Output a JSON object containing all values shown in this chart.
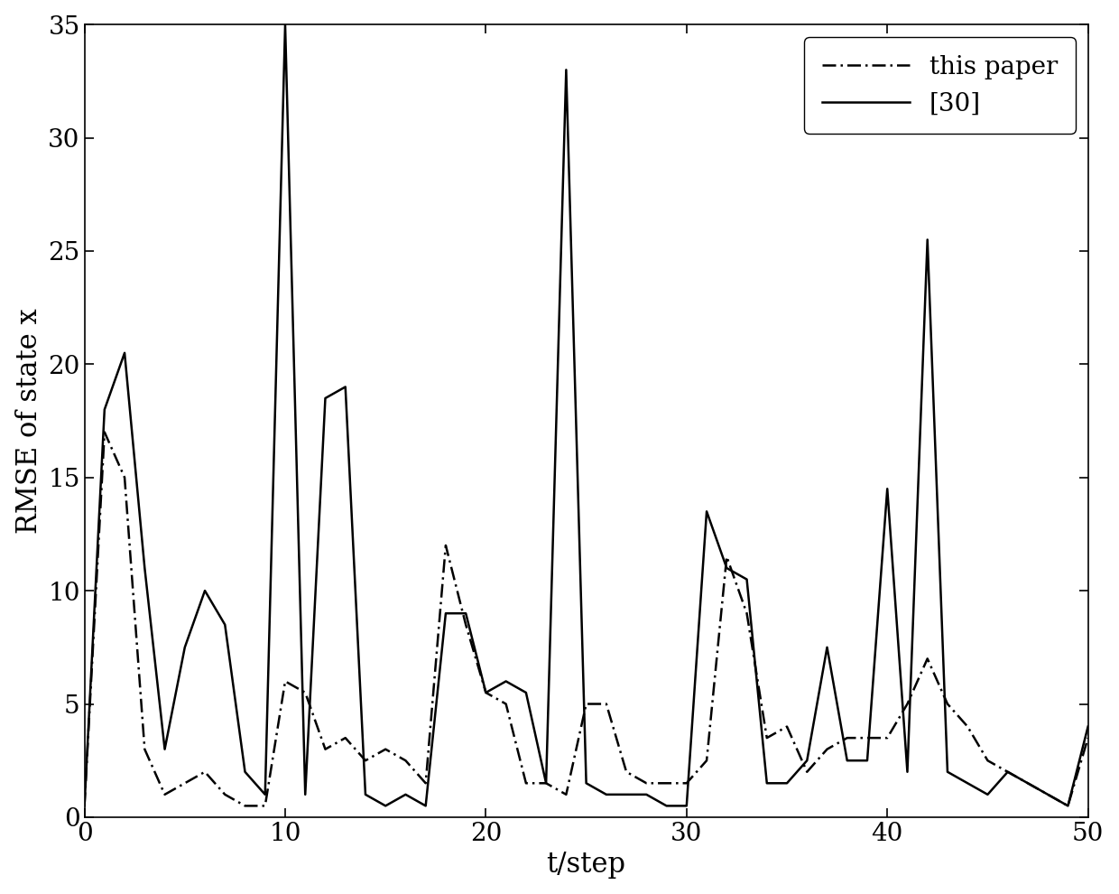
{
  "this_paper_x": [
    0,
    1,
    2,
    3,
    4,
    5,
    6,
    7,
    8,
    9,
    10,
    11,
    12,
    13,
    14,
    15,
    16,
    17,
    18,
    19,
    20,
    21,
    22,
    23,
    24,
    25,
    26,
    27,
    28,
    29,
    30,
    31,
    32,
    33,
    34,
    35,
    36,
    37,
    38,
    39,
    40,
    41,
    42,
    43,
    44,
    45,
    46,
    47,
    48,
    49,
    50
  ],
  "this_paper_y": [
    0.5,
    17.0,
    15.0,
    3.0,
    1.0,
    1.5,
    2.0,
    1.0,
    0.5,
    0.5,
    6.0,
    5.5,
    3.0,
    3.5,
    2.5,
    3.0,
    2.5,
    1.5,
    12.0,
    8.5,
    5.5,
    5.0,
    1.5,
    1.5,
    1.0,
    5.0,
    5.0,
    2.0,
    1.5,
    1.5,
    1.5,
    2.5,
    11.5,
    9.0,
    3.5,
    4.0,
    2.0,
    3.0,
    3.5,
    3.5,
    3.5,
    5.0,
    7.0,
    5.0,
    4.0,
    2.5,
    2.0,
    1.5,
    1.0,
    0.5,
    3.5
  ],
  "ref30_x": [
    0,
    1,
    2,
    3,
    4,
    5,
    6,
    7,
    8,
    9,
    10,
    11,
    12,
    13,
    14,
    15,
    16,
    17,
    18,
    19,
    20,
    21,
    22,
    23,
    24,
    25,
    26,
    27,
    28,
    29,
    30,
    31,
    32,
    33,
    34,
    35,
    36,
    37,
    38,
    39,
    40,
    41,
    42,
    43,
    44,
    45,
    46,
    47,
    48,
    49,
    50
  ],
  "ref30_y": [
    0.5,
    18.0,
    20.5,
    11.0,
    3.0,
    7.5,
    10.0,
    8.5,
    2.0,
    1.0,
    35.0,
    1.0,
    18.5,
    19.0,
    1.0,
    0.5,
    1.0,
    0.5,
    9.0,
    9.0,
    5.5,
    6.0,
    5.5,
    1.5,
    33.0,
    1.5,
    1.0,
    1.0,
    1.0,
    0.5,
    0.5,
    13.5,
    11.0,
    10.5,
    1.5,
    1.5,
    2.5,
    7.5,
    2.5,
    2.5,
    14.5,
    2.0,
    25.5,
    2.0,
    1.5,
    1.0,
    2.0,
    1.5,
    1.0,
    0.5,
    4.0
  ],
  "xlabel": "t/step",
  "ylabel": "RMSE of state x",
  "xlim": [
    0,
    50
  ],
  "ylim": [
    0,
    35
  ],
  "yticks": [
    0,
    5,
    10,
    15,
    20,
    25,
    30,
    35
  ],
  "xticks": [
    0,
    10,
    20,
    30,
    40,
    50
  ],
  "legend_labels": [
    "this paper",
    "[30]"
  ],
  "legend_linestyles": [
    "-.",
    "-"
  ],
  "line_color": "#000000",
  "linewidth": 1.8,
  "fig_width": 12.4,
  "fig_height": 9.9,
  "dpi": 100
}
